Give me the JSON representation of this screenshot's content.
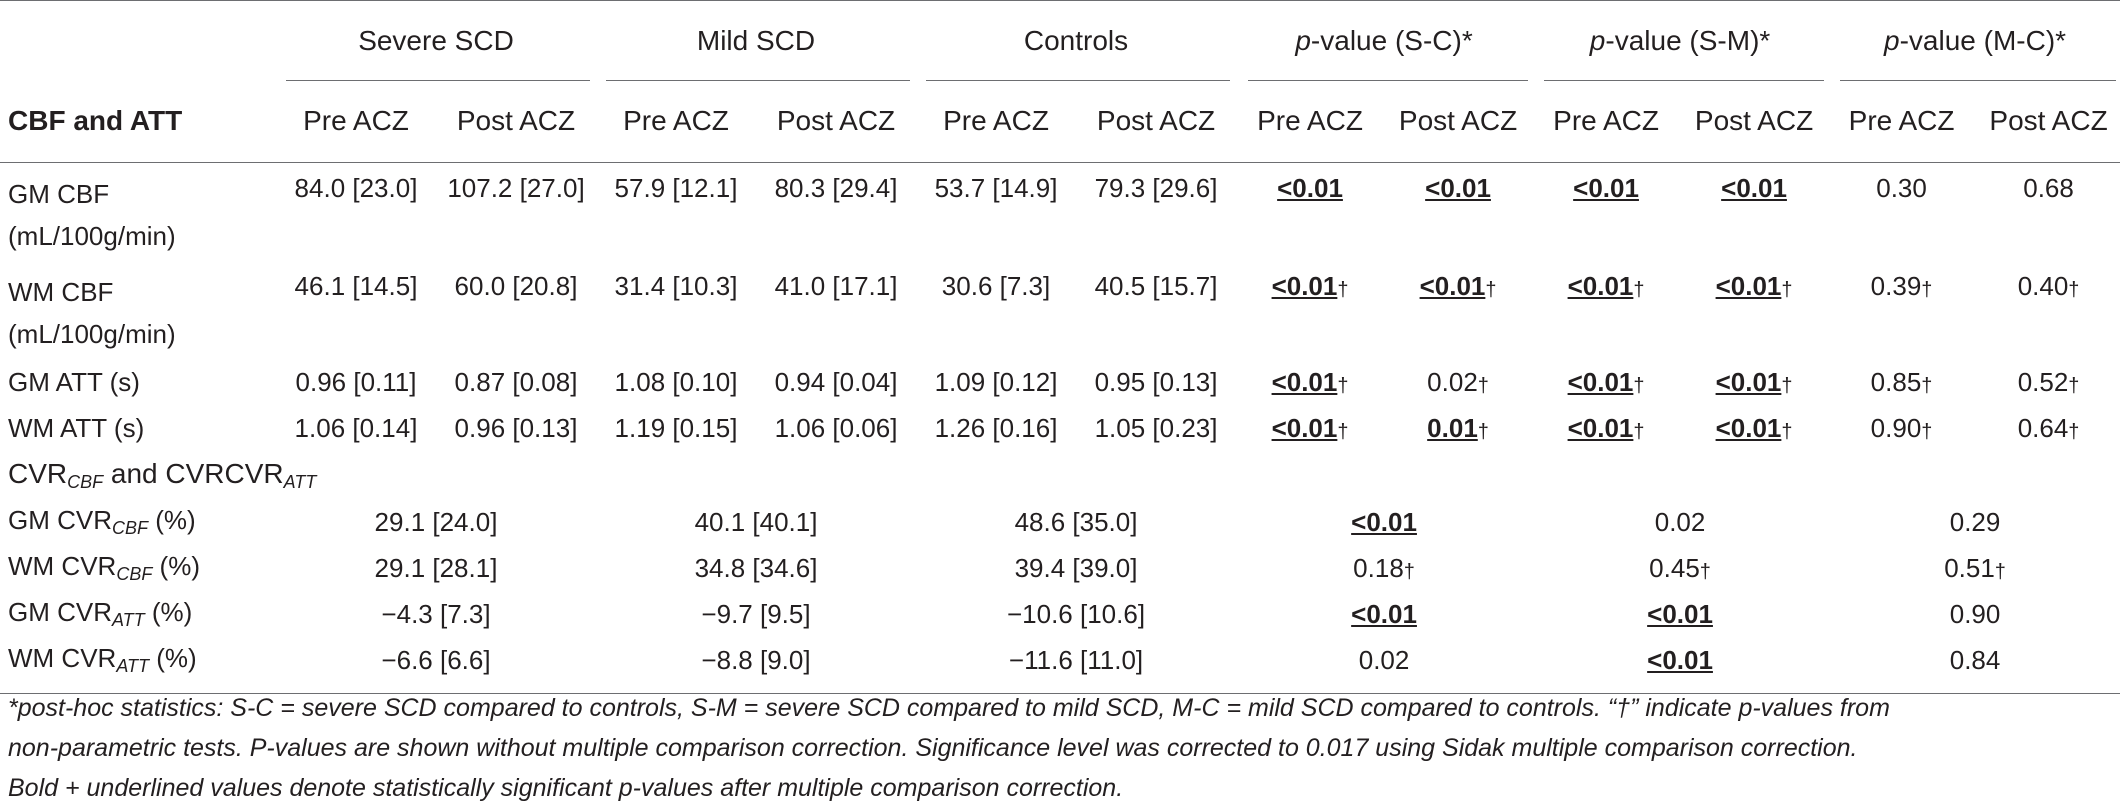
{
  "header": {
    "groups": [
      "Severe SCD",
      "Mild SCD",
      "Controls"
    ],
    "pgroups": [
      {
        "p": "p",
        "label": "-value (S-C)*"
      },
      {
        "p": "p",
        "label": "-value (S-M)*"
      },
      {
        "p": "p",
        "label": "-value (M-C)*"
      }
    ],
    "row_label": "CBF and ATT",
    "pre": "Pre ACZ",
    "post": "Post ACZ"
  },
  "section1_rows": [
    {
      "label1": "GM CBF",
      "label2": "(mL/100g/min)",
      "vals": [
        "84.0 [23.0]",
        "107.2 [27.0]",
        "57.9 [12.1]",
        "80.3 [29.4]",
        "53.7 [14.9]",
        "79.3 [29.6]"
      ],
      "p": [
        "<0.01",
        "<0.01",
        "<0.01",
        "<0.01",
        "0.30",
        "0.68"
      ]
    },
    {
      "label1": "WM CBF",
      "label2": "(mL/100g/min)",
      "vals": [
        "46.1 [14.5]",
        "60.0 [20.8]",
        "31.4 [10.3]",
        "41.0 [17.1]",
        "30.6 [7.3]",
        "40.5 [15.7]"
      ],
      "p": [
        "<0.01",
        "<0.01",
        "<0.01",
        "<0.01",
        "0.39",
        "0.40"
      ]
    },
    {
      "label1": "GM ATT (s)",
      "vals": [
        "0.96 [0.11]",
        "0.87 [0.08]",
        "1.08 [0.10]",
        "0.94 [0.04]",
        "1.09 [0.12]",
        "0.95 [0.13]"
      ],
      "p": [
        "<0.01",
        "0.02",
        "<0.01",
        "<0.01",
        "0.85",
        "0.52"
      ]
    },
    {
      "label1": "WM ATT (s)",
      "vals": [
        "1.06 [0.14]",
        "0.96 [0.13]",
        "1.19 [0.15]",
        "1.06 [0.06]",
        "1.26 [0.16]",
        "1.05 [0.23]"
      ],
      "p": [
        "<0.01",
        "0.01",
        "<0.01",
        "<0.01",
        "0.90",
        "0.64"
      ]
    }
  ],
  "section2": {
    "title_a": "CVR",
    "sub_a": "CBF",
    "mid": " and CVR",
    "sub_b": "ATT",
    "rows": [
      {
        "pre": "GM CVR",
        "sub": "CBF",
        "post": " (%)",
        "vals": [
          "29.1 [24.0]",
          "40.1 [40.1]",
          "48.6 [35.0]"
        ],
        "p": [
          "<0.01",
          "0.02",
          "0.29"
        ]
      },
      {
        "pre": "WM CVR",
        "sub": "CBF",
        "post": " (%)",
        "vals": [
          "29.1 [28.1]",
          "34.8 [34.6]",
          "39.4 [39.0]"
        ],
        "p": [
          "0.18",
          "0.45",
          "0.51"
        ]
      },
      {
        "pre": "GM CVR",
        "sub": "ATT",
        "post": " (%)",
        "vals": [
          "−4.3 [7.3]",
          "−9.7 [9.5]",
          "−10.6 [10.6]"
        ],
        "p": [
          "<0.01",
          "<0.01",
          "0.90"
        ]
      },
      {
        "pre": "WM CVR",
        "sub": "ATT",
        "post": " (%)",
        "vals": [
          "−6.6 [6.6]",
          "−8.8 [9.0]",
          "−11.6 [11.0]"
        ],
        "p": [
          "0.02",
          "<0.01",
          "0.84"
        ]
      }
    ]
  },
  "dagger": "†",
  "footnote": {
    "l1": "*post-hoc statistics: S-C = severe SCD compared to controls, S-M = severe SCD compared to mild SCD, M-C = mild SCD compared to controls. “†” indicate p-values from",
    "l2": "non-parametric tests. P-values are shown without multiple comparison correction. Significance level was corrected to 0.017 using Sidak multiple comparison correction.",
    "l3": "Bold + underlined values denote statistically significant p-values after multiple comparison correction."
  }
}
